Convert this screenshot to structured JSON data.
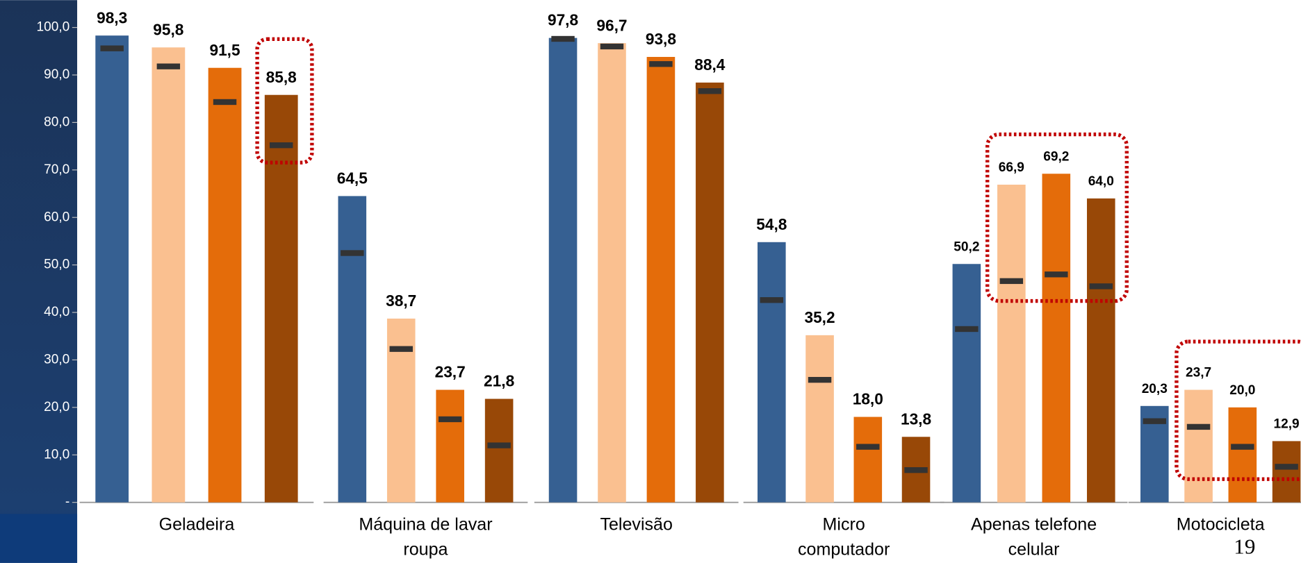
{
  "chart_data": {
    "type": "bar",
    "categories": [
      [
        "Geladeira"
      ],
      [
        "Máquina de lavar",
        "roupa"
      ],
      [
        "Televisão"
      ],
      [
        "Micro",
        "computador"
      ],
      [
        "Apenas telefone",
        "celular"
      ],
      [
        "Motocicleta"
      ]
    ],
    "series": [
      {
        "color": "#366092",
        "values": [
          98.3,
          64.5,
          97.8,
          54.8,
          50.2,
          20.3
        ],
        "value_labels": [
          "98,3",
          "64,5",
          "97,8",
          "54,8",
          "50,2",
          "20,3"
        ],
        "markers": [
          95.6,
          52.5,
          97.6,
          42.6,
          36.5,
          17.1
        ]
      },
      {
        "color": "#fac090",
        "values": [
          95.8,
          38.7,
          96.7,
          35.2,
          66.9,
          23.7
        ],
        "value_labels": [
          "95,8",
          "38,7",
          "96,7",
          "35,2",
          "66,9",
          "23,7"
        ],
        "markers": [
          91.8,
          32.3,
          96.0,
          25.8,
          46.6,
          15.9
        ]
      },
      {
        "color": "#e46c0a",
        "values": [
          91.5,
          23.7,
          93.8,
          18.0,
          69.2,
          20.0
        ],
        "value_labels": [
          "91,5",
          "23,7",
          "93,8",
          "18,0",
          "69,2",
          "20,0"
        ],
        "markers": [
          84.3,
          17.5,
          92.3,
          11.7,
          48.0,
          11.7
        ]
      },
      {
        "color": "#984807",
        "values": [
          85.8,
          21.8,
          88.4,
          13.8,
          64.0,
          12.9
        ],
        "value_labels": [
          "85,8",
          "21,8",
          "88,4",
          "13,8",
          "64,0",
          "12,9"
        ],
        "markers": [
          75.2,
          12.0,
          86.6,
          6.8,
          45.5,
          7.5
        ]
      }
    ],
    "ylim": [
      0,
      100
    ],
    "yticks": [
      {
        "value": 0,
        "label": "-"
      },
      {
        "value": 10,
        "label": "10,0"
      },
      {
        "value": 20,
        "label": "20,0"
      },
      {
        "value": 30,
        "label": "30,0"
      },
      {
        "value": 40,
        "label": "40,0"
      },
      {
        "value": 50,
        "label": "50,0"
      },
      {
        "value": 60,
        "label": "60,0"
      },
      {
        "value": 70,
        "label": "70,0"
      },
      {
        "value": 80,
        "label": "80,0"
      },
      {
        "value": 90,
        "label": "90,0"
      },
      {
        "value": 100,
        "label": "100,0"
      }
    ],
    "marker_color": "#333333",
    "page_number": "19"
  }
}
